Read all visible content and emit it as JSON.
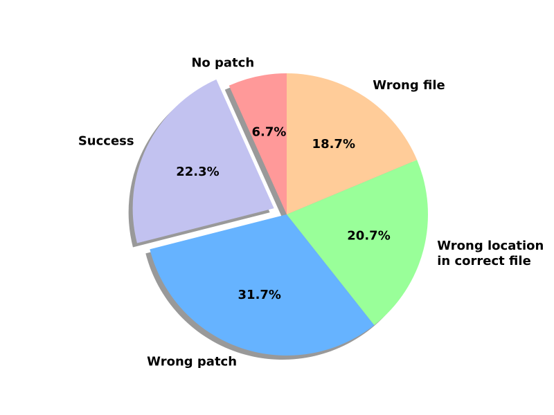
{
  "chart_data": {
    "type": "pie",
    "title": "",
    "slices": [
      {
        "label": "No patch",
        "value": 6.7,
        "pct_text": "6.7%",
        "color": "#ff9999",
        "explode": false
      },
      {
        "label": "Success",
        "value": 22.3,
        "pct_text": "22.3%",
        "color": "#c2c2f0",
        "explode": true
      },
      {
        "label": "Wrong patch",
        "value": 31.7,
        "pct_text": "31.7%",
        "color": "#66b3ff",
        "explode": false
      },
      {
        "label": "Wrong location\nin correct file",
        "value": 20.7,
        "pct_text": "20.7%",
        "color": "#99ff99",
        "explode": false
      },
      {
        "label": "Wrong file",
        "value": 18.7,
        "pct_text": "18.7%",
        "color": "#ffcc99",
        "explode": false
      }
    ],
    "start_angle_deg": 90,
    "direction": "counterclockwise",
    "shadow": true,
    "legend": "none",
    "text_color": "#000000",
    "shadow_color": "#6e6e6e"
  }
}
